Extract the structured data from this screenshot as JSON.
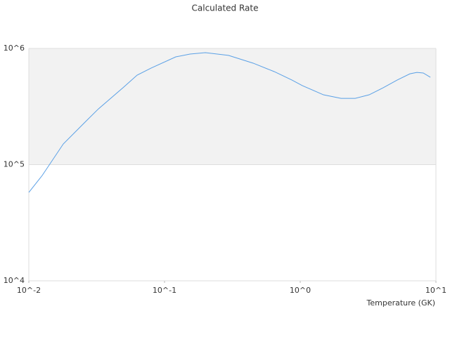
{
  "chart_data": {
    "type": "line",
    "title": "Calculated Rate",
    "x_label": "Temperature (GK)",
    "log_x": true,
    "log_y": true,
    "x": [
      0.01,
      0.01254,
      0.01795,
      0.02564,
      0.03258,
      0.0494,
      0.0628,
      0.0797,
      0.121,
      0.154,
      0.2,
      0.296,
      0.45,
      0.643,
      0.867,
      1.036,
      1.483,
      2.0,
      2.54,
      3.22,
      4.09,
      5.19,
      6.43,
      7.24,
      8.07,
      9.1
    ],
    "series": [
      {
        "color": "#5aa0e6",
        "values": [
          57700,
          80600,
          150700,
          228800,
          302000,
          459000,
          589000,
          678000,
          846000,
          895000,
          920000,
          871000,
          747000,
          632000,
          535000,
          479000,
          399000,
          372000,
          372000,
          399000,
          459000,
          535000,
          605000,
          622000,
          615000,
          565000
        ]
      }
    ],
    "shaded_band": [
      100000,
      1000000
    ],
    "band_color": "#f2f2f2",
    "xlim": [
      0.01,
      10
    ],
    "ylim": [
      10000,
      1000000
    ],
    "xticks": [
      {
        "value": 0.01,
        "label": "10^-2"
      },
      {
        "value": 0.1,
        "label": "10^-1"
      },
      {
        "value": 1,
        "label": "10^0"
      },
      {
        "value": 10,
        "label": "10^1"
      }
    ],
    "yticks": [
      {
        "value": 10000,
        "label": "10^4"
      },
      {
        "value": 100000,
        "label": "10^5"
      },
      {
        "value": 1000000,
        "label": "10^6"
      }
    ],
    "grid": true
  }
}
